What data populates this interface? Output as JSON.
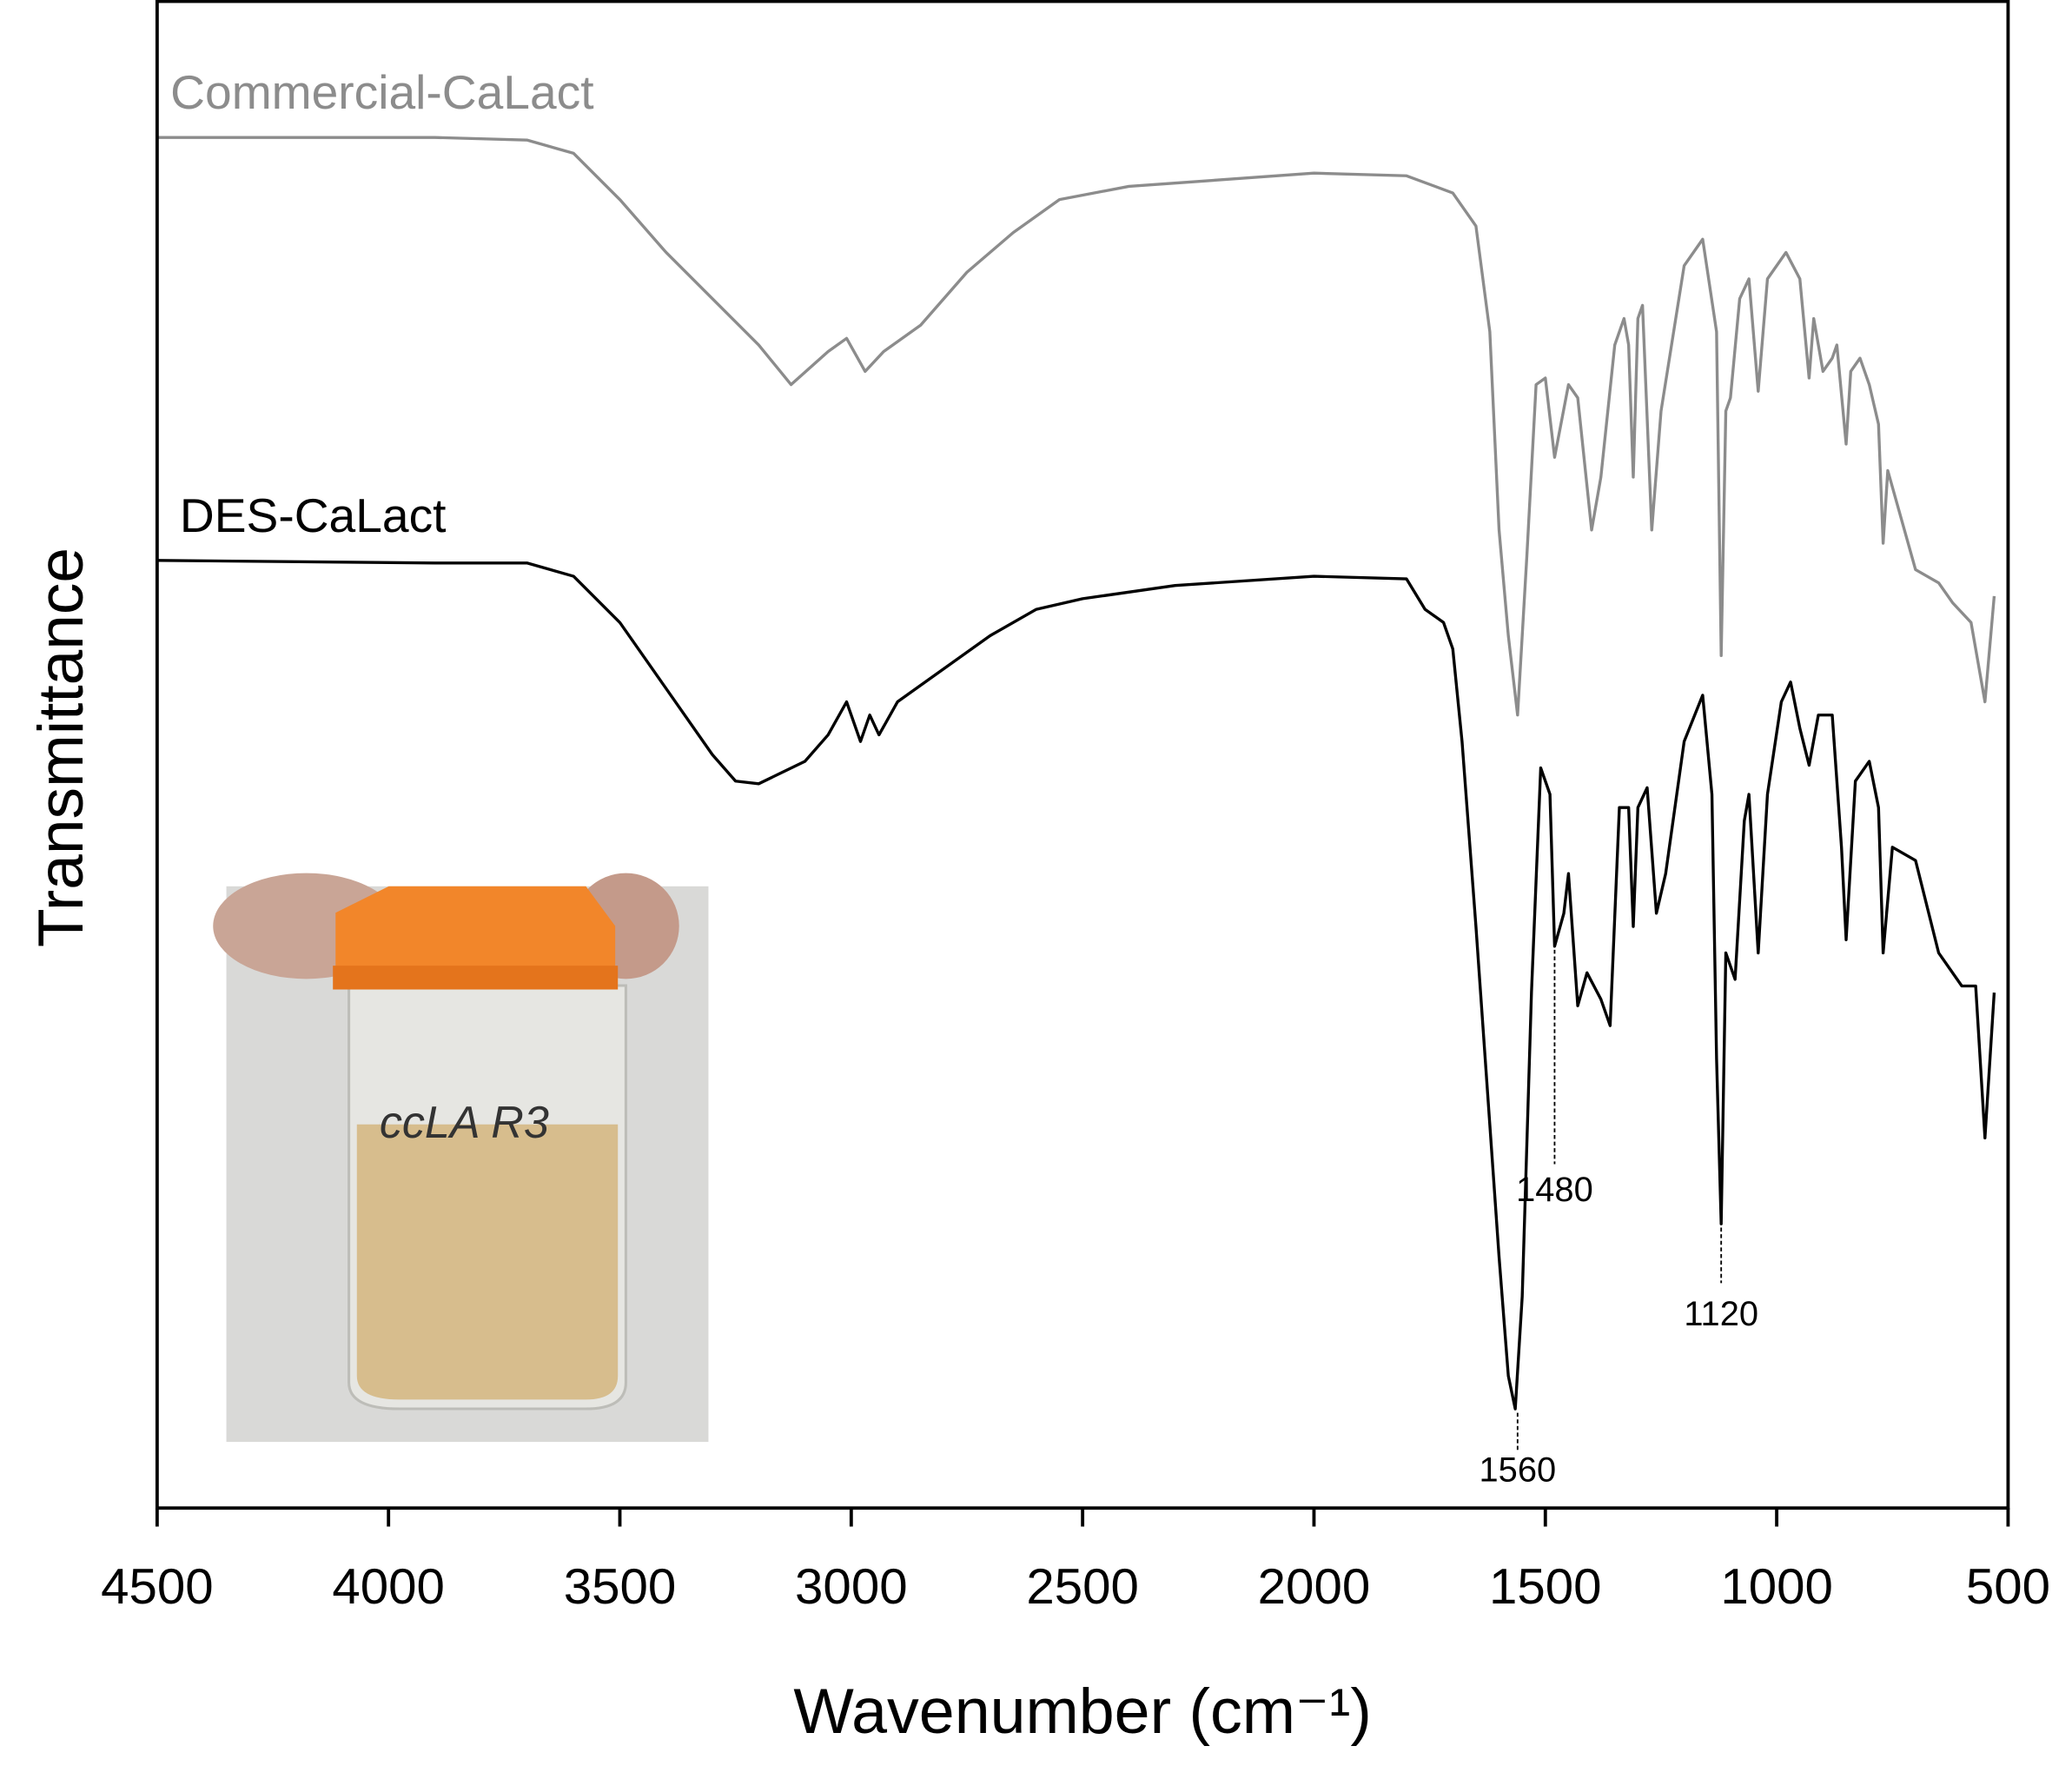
{
  "chart_data": {
    "type": "line",
    "xlabel": "Wavenumber (cm⁻¹)",
    "ylabel": "Transmittance",
    "xlim": [
      4500,
      500
    ],
    "xticks": [
      4500,
      4000,
      3500,
      3000,
      2500,
      2000,
      1500,
      1000,
      500
    ],
    "ylim": [
      0,
      114
    ],
    "series": [
      {
        "name": "Commercial-CaLact",
        "color": "#8c8c8c",
        "x": [
          4500,
          3900,
          3700,
          3600,
          3500,
          3400,
          3300,
          3200,
          3130,
          3050,
          3010,
          2970,
          2930,
          2850,
          2750,
          2650,
          2550,
          2400,
          2200,
          2000,
          1800,
          1700,
          1650,
          1620,
          1600,
          1580,
          1560,
          1540,
          1520,
          1500,
          1480,
          1450,
          1430,
          1400,
          1380,
          1350,
          1330,
          1320,
          1310,
          1300,
          1290,
          1270,
          1250,
          1200,
          1160,
          1130,
          1120,
          1110,
          1100,
          1080,
          1060,
          1040,
          1020,
          980,
          950,
          930,
          920,
          900,
          880,
          870,
          850,
          840,
          820,
          800,
          780,
          770,
          760,
          740,
          700,
          650,
          620,
          580,
          550,
          530
        ],
        "values": [
          103.7,
          103.7,
          103.5,
          102.5,
          99,
          95,
          91.5,
          88,
          85,
          87.5,
          88.5,
          86,
          87.5,
          89.5,
          93.5,
          96.5,
          99,
          100,
          100.5,
          101,
          100.8,
          99.5,
          97,
          89,
          74,
          66,
          60,
          72,
          85,
          85.5,
          79.5,
          85,
          84,
          74,
          78,
          88,
          90,
          88,
          78,
          90,
          91,
          74,
          83,
          94,
          96,
          89,
          64.5,
          83,
          84,
          91.5,
          93,
          84.5,
          93,
          95,
          93,
          85.5,
          90,
          86,
          87,
          88,
          80.5,
          86,
          87,
          85,
          82,
          73,
          78.5,
          76,
          71,
          70,
          68.5,
          67,
          61,
          69
        ]
      },
      {
        "name": "DES-CaLact",
        "color": "#000000",
        "x": [
          4500,
          3900,
          3700,
          3600,
          3500,
          3400,
          3300,
          3250,
          3200,
          3100,
          3050,
          3010,
          2980,
          2960,
          2940,
          2900,
          2800,
          2700,
          2600,
          2500,
          2300,
          2000,
          1800,
          1760,
          1720,
          1700,
          1680,
          1650,
          1620,
          1600,
          1580,
          1565,
          1550,
          1530,
          1510,
          1490,
          1480,
          1460,
          1450,
          1430,
          1410,
          1380,
          1360,
          1340,
          1320,
          1310,
          1300,
          1280,
          1260,
          1240,
          1200,
          1160,
          1140,
          1130,
          1120,
          1110,
          1090,
          1070,
          1060,
          1040,
          1020,
          990,
          970,
          950,
          930,
          910,
          880,
          860,
          850,
          830,
          800,
          780,
          770,
          750,
          700,
          650,
          600,
          570,
          550,
          530
        ],
        "values": [
          71.7,
          71.5,
          71.5,
          70.5,
          67,
          62,
          57,
          55,
          54.8,
          56.5,
          58.5,
          61,
          58,
          60,
          58.5,
          61,
          63.5,
          66,
          68,
          68.8,
          69.8,
          70.5,
          70.3,
          68,
          67,
          65,
          58,
          44,
          29,
          19,
          10,
          7.5,
          16,
          39,
          56,
          54,
          42.5,
          45,
          48,
          38,
          40.5,
          38.5,
          36.5,
          53,
          53,
          44,
          53,
          54.5,
          45,
          48,
          58,
          61.5,
          54,
          34,
          21.5,
          42,
          40,
          52,
          54,
          42,
          54,
          61,
          62.5,
          59,
          56.2,
          60,
          60,
          50,
          43,
          55,
          56.5,
          53,
          42,
          50,
          49,
          42,
          39.5,
          39.5,
          28,
          39
        ]
      }
    ],
    "annotations": [
      {
        "x": 1560,
        "label": "1560"
      },
      {
        "x": 1480,
        "label": "1480"
      },
      {
        "x": 1120,
        "label": "1120"
      }
    ]
  }
}
